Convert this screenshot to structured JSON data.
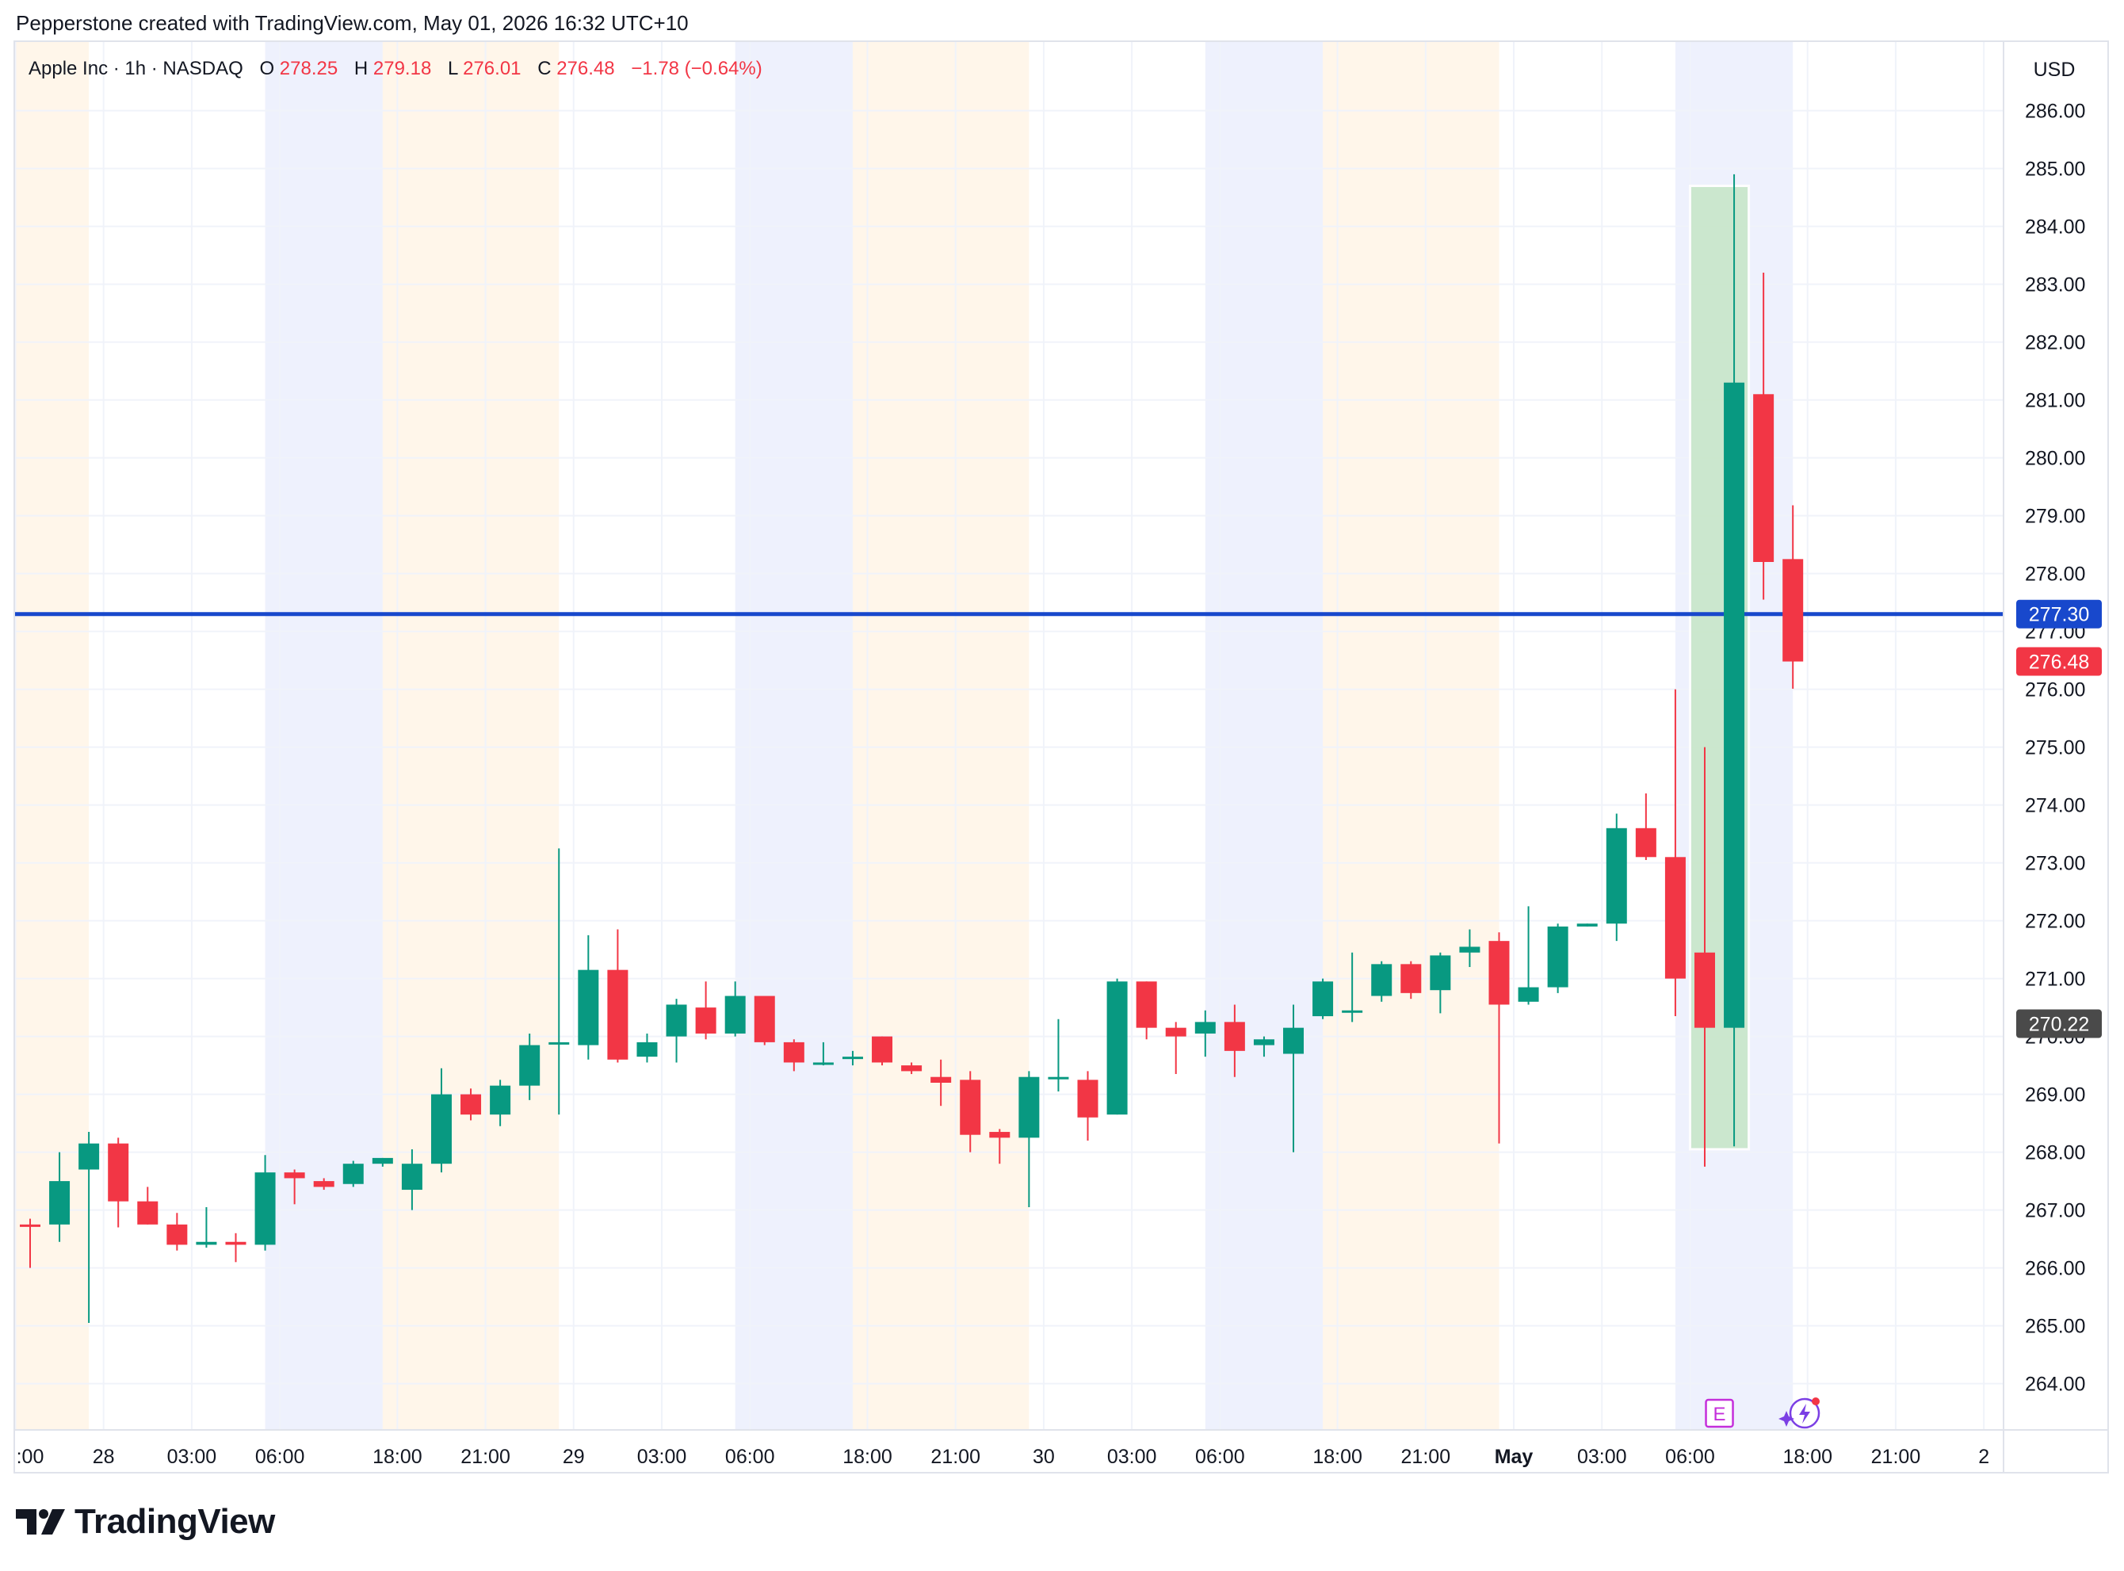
{
  "header": {
    "credit": "Pepperstone created with TradingView.com, May 01, 2026 16:32 UTC+10"
  },
  "legend": {
    "symbol": "Apple Inc · 1h · NASDAQ",
    "o_label": "O",
    "o_value": "278.25",
    "h_label": "H",
    "h_value": "279.18",
    "l_label": "L",
    "l_value": "276.01",
    "c_label": "C",
    "c_value": "276.48",
    "change": "−1.78 (−0.64%)"
  },
  "currency": "USD",
  "brand": "TradingView",
  "markers": {
    "earnings": "E"
  },
  "colors": {
    "up": "#089981",
    "down": "#f23645",
    "hline": "#1848cc",
    "premarket": "#eef1fd",
    "afterhours": "#fff6ea",
    "range_box": "#c8e6c9",
    "grid": "#f0f3fa",
    "text": "#131722"
  },
  "chart_data": {
    "type": "candlestick",
    "y_range": [
      263.2,
      287.2
    ],
    "y_ticks": [
      "264.00",
      "265.00",
      "266.00",
      "267.00",
      "268.00",
      "269.00",
      "270.00",
      "271.00",
      "272.00",
      "273.00",
      "274.00",
      "275.00",
      "276.00",
      "277.00",
      "278.00",
      "279.00",
      "280.00",
      "281.00",
      "282.00",
      "283.00",
      "284.00",
      "285.00",
      "286.00"
    ],
    "x_ticks": [
      {
        "label": ":00",
        "bar": -0.5,
        "bold": false
      },
      {
        "label": "28",
        "bar": 2.5,
        "bold": false
      },
      {
        "label": "03:00",
        "bar": 5.5,
        "bold": false
      },
      {
        "label": "06:00",
        "bar": 8.5,
        "bold": false
      },
      {
        "label": "18:00",
        "bar": 12.5,
        "bold": false
      },
      {
        "label": "21:00",
        "bar": 15.5,
        "bold": false
      },
      {
        "label": "29",
        "bar": 18.5,
        "bold": false
      },
      {
        "label": "03:00",
        "bar": 21.5,
        "bold": false
      },
      {
        "label": "06:00",
        "bar": 24.5,
        "bold": false
      },
      {
        "label": "18:00",
        "bar": 28.5,
        "bold": false
      },
      {
        "label": "21:00",
        "bar": 31.5,
        "bold": false
      },
      {
        "label": "30",
        "bar": 34.5,
        "bold": false
      },
      {
        "label": "03:00",
        "bar": 37.5,
        "bold": false
      },
      {
        "label": "06:00",
        "bar": 40.5,
        "bold": false
      },
      {
        "label": "18:00",
        "bar": 44.5,
        "bold": false
      },
      {
        "label": "21:00",
        "bar": 47.5,
        "bold": false
      },
      {
        "label": "May",
        "bar": 50.5,
        "bold": true
      },
      {
        "label": "03:00",
        "bar": 53.5,
        "bold": false
      },
      {
        "label": "06:00",
        "bar": 56.5,
        "bold": false
      },
      {
        "label": "18:00",
        "bar": 60.5,
        "bold": false
      },
      {
        "label": "21:00",
        "bar": 63.5,
        "bold": false
      },
      {
        "label": "2",
        "bar": 66.5,
        "bold": false
      }
    ],
    "sessions": [
      {
        "type": "afterhours",
        "from": -0.5,
        "to": 2
      },
      {
        "type": "premarket",
        "from": 8,
        "to": 12
      },
      {
        "type": "afterhours",
        "from": 12,
        "to": 18
      },
      {
        "type": "premarket",
        "from": 24,
        "to": 28
      },
      {
        "type": "afterhours",
        "from": 28,
        "to": 34
      },
      {
        "type": "premarket",
        "from": 40,
        "to": 44
      },
      {
        "type": "afterhours",
        "from": 44,
        "to": 50
      },
      {
        "type": "premarket",
        "from": 56,
        "to": 60
      }
    ],
    "candles": [
      [
        266.75,
        266.85,
        266.0,
        266.72
      ],
      [
        266.75,
        268.0,
        266.45,
        267.5
      ],
      [
        267.7,
        268.35,
        265.05,
        268.15
      ],
      [
        268.15,
        268.25,
        266.7,
        267.15
      ],
      [
        267.15,
        267.4,
        266.75,
        266.75
      ],
      [
        266.75,
        266.95,
        266.3,
        266.4
      ],
      [
        266.4,
        267.05,
        266.35,
        266.45
      ],
      [
        266.45,
        266.6,
        266.1,
        266.4
      ],
      [
        266.4,
        267.95,
        266.3,
        267.65
      ],
      [
        267.65,
        267.7,
        267.1,
        267.55
      ],
      [
        267.5,
        267.55,
        267.35,
        267.4
      ],
      [
        267.45,
        267.85,
        267.4,
        267.8
      ],
      [
        267.8,
        267.9,
        267.75,
        267.9
      ],
      [
        267.35,
        268.05,
        267.0,
        267.8
      ],
      [
        267.8,
        269.45,
        267.65,
        269.0
      ],
      [
        269.0,
        269.1,
        268.55,
        268.65
      ],
      [
        268.65,
        269.25,
        268.45,
        269.15
      ],
      [
        269.15,
        270.05,
        268.9,
        269.85
      ],
      [
        269.9,
        273.25,
        268.65,
        269.9
      ],
      [
        269.85,
        271.75,
        269.6,
        271.15
      ],
      [
        271.15,
        271.85,
        269.55,
        269.6
      ],
      [
        269.65,
        270.05,
        269.55,
        269.9
      ],
      [
        270.0,
        270.65,
        269.55,
        270.55
      ],
      [
        270.5,
        270.95,
        269.95,
        270.05
      ],
      [
        270.05,
        270.95,
        270.0,
        270.7
      ],
      [
        270.7,
        270.7,
        269.85,
        269.9
      ],
      [
        269.9,
        269.95,
        269.4,
        269.55
      ],
      [
        269.55,
        269.9,
        269.5,
        269.55
      ],
      [
        269.65,
        269.75,
        269.5,
        269.65
      ],
      [
        270.0,
        270.0,
        269.5,
        269.55
      ],
      [
        269.5,
        269.55,
        269.35,
        269.4
      ],
      [
        269.3,
        269.6,
        268.8,
        269.2
      ],
      [
        269.25,
        269.4,
        268.0,
        268.3
      ],
      [
        268.35,
        268.4,
        267.8,
        268.25
      ],
      [
        268.25,
        269.4,
        267.05,
        269.3
      ],
      [
        269.3,
        270.3,
        269.05,
        269.3
      ],
      [
        269.25,
        269.4,
        268.2,
        268.6
      ],
      [
        268.65,
        271.0,
        268.65,
        270.95
      ],
      [
        270.95,
        270.95,
        269.95,
        270.15
      ],
      [
        270.15,
        270.25,
        269.35,
        270.0
      ],
      [
        270.05,
        270.45,
        269.65,
        270.25
      ],
      [
        270.25,
        270.55,
        269.3,
        269.75
      ],
      [
        269.85,
        270.0,
        269.65,
        269.95
      ],
      [
        269.7,
        270.55,
        268.0,
        270.15
      ],
      [
        270.35,
        271.0,
        270.3,
        270.95
      ],
      [
        270.45,
        271.45,
        270.25,
        270.45
      ],
      [
        270.7,
        271.3,
        270.6,
        271.25
      ],
      [
        271.25,
        271.3,
        270.65,
        270.75
      ],
      [
        270.8,
        271.45,
        270.4,
        271.4
      ],
      [
        271.45,
        271.85,
        271.2,
        271.55
      ],
      [
        271.65,
        271.8,
        268.15,
        270.55
      ],
      [
        270.6,
        272.25,
        270.55,
        270.85
      ],
      [
        270.85,
        271.95,
        270.75,
        271.9
      ],
      [
        271.9,
        271.95,
        271.9,
        271.95
      ],
      [
        271.95,
        273.85,
        271.65,
        273.6
      ],
      [
        273.6,
        274.2,
        273.05,
        273.1
      ],
      [
        273.1,
        276.0,
        270.35,
        271.0
      ],
      [
        271.45,
        275.0,
        267.75,
        270.15
      ],
      [
        270.15,
        284.9,
        268.1,
        281.3
      ],
      [
        281.1,
        283.2,
        277.55,
        278.2
      ],
      [
        278.25,
        279.18,
        276.01,
        276.48
      ]
    ],
    "hline": {
      "value": 277.3,
      "label": "277.30"
    },
    "last_price": {
      "value": 276.48,
      "label": "276.48"
    },
    "range_box": {
      "from": 56.5,
      "to": 58.5,
      "top": 284.7,
      "bottom": 268.05,
      "label": "270.22",
      "label_value": 270.22
    }
  }
}
